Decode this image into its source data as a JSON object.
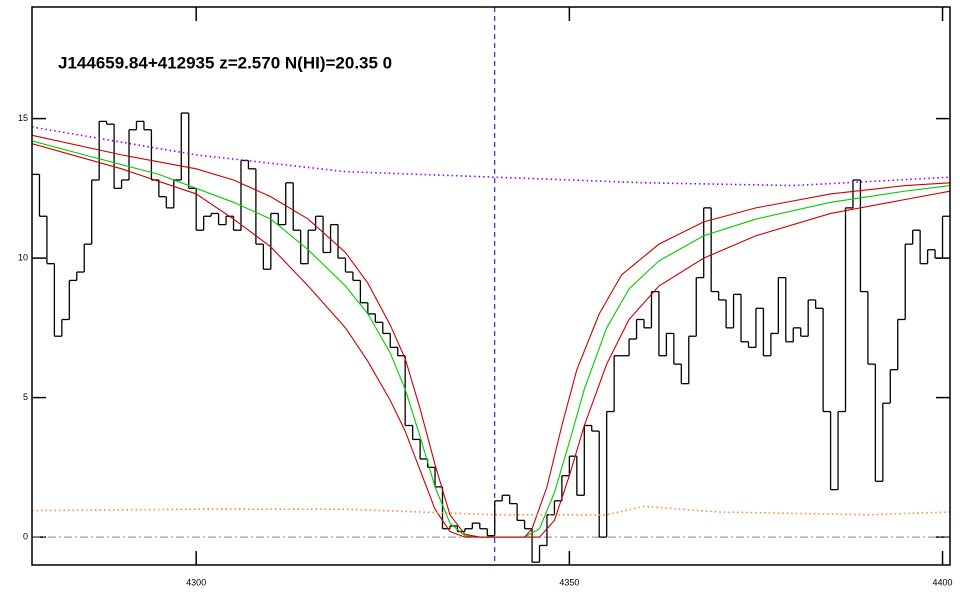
{
  "chart_data": {
    "type": "line",
    "title": "J144659.84+412935 z=2.570 N(HI)=20.35 0",
    "xlim": [
      4278,
      4401
    ],
    "ylim": [
      -1,
      19
    ],
    "xticks": [
      4300,
      4350,
      4400
    ],
    "yticks": [
      0,
      5,
      10,
      15
    ],
    "vline": 4340,
    "hline": 0,
    "x": [
      4278,
      4279,
      4280,
      4281,
      4282,
      4283,
      4284,
      4285,
      4286,
      4287,
      4288,
      4289,
      4290,
      4291,
      4292,
      4293,
      4294,
      4295,
      4296,
      4297,
      4298,
      4299,
      4300,
      4301,
      4302,
      4303,
      4304,
      4305,
      4306,
      4307,
      4308,
      4309,
      4310,
      4311,
      4312,
      4313,
      4314,
      4315,
      4316,
      4317,
      4318,
      4319,
      4320,
      4321,
      4322,
      4323,
      4324,
      4325,
      4326,
      4327,
      4328,
      4329,
      4330,
      4331,
      4332,
      4333,
      4334,
      4335,
      4336,
      4337,
      4338,
      4339,
      4340,
      4341,
      4342,
      4343,
      4344,
      4345,
      4346,
      4347,
      4348,
      4349,
      4350,
      4351,
      4352,
      4353,
      4354,
      4355,
      4356,
      4357,
      4358,
      4359,
      4360,
      4361,
      4362,
      4363,
      4364,
      4365,
      4366,
      4367,
      4368,
      4369,
      4370,
      4371,
      4372,
      4373,
      4374,
      4375,
      4376,
      4377,
      4378,
      4379,
      4380,
      4381,
      4382,
      4383,
      4384,
      4385,
      4386,
      4387,
      4388,
      4389,
      4390,
      4391,
      4392,
      4393,
      4394,
      4395,
      4396,
      4397,
      4398,
      4399,
      4400
    ],
    "series": [
      {
        "color": "#000000",
        "steps": true,
        "values": [
          13,
          11.5,
          9.8,
          7.2,
          7.8,
          9.2,
          9.5,
          10.5,
          12.8,
          14.9,
          14.8,
          12.5,
          12.8,
          14.6,
          14.9,
          14.6,
          12.8,
          12.2,
          11.8,
          12.8,
          15.2,
          12.5,
          11,
          11.5,
          11.6,
          11.2,
          11.5,
          11,
          13.5,
          13.2,
          10.5,
          9.6,
          11.6,
          11.2,
          12.7,
          11,
          9.8,
          11,
          11.5,
          10.2,
          11.2,
          10,
          9.5,
          9.2,
          8.4,
          8,
          7.7,
          7.3,
          6.8,
          6.5,
          4,
          3.5,
          2.8,
          2.5,
          1.8,
          0.3,
          0.4,
          0.2,
          0.3,
          0.5,
          0.3,
          0.05,
          1.3,
          1.5,
          1.2,
          0.6,
          0.3,
          -0.9,
          -0.3,
          0.8,
          1.3,
          2.2,
          2.9,
          1.5,
          4,
          3.8,
          0,
          4.5,
          6.5,
          6.5,
          7.1,
          7.8,
          7.5,
          8.8,
          6.5,
          7.3,
          6.2,
          5.5,
          7.2,
          9.3,
          11.8,
          8.8,
          8.5,
          7.5,
          8.7,
          7,
          6.8,
          8.2,
          6.5,
          7.3,
          9.3,
          7,
          7.5,
          7.2,
          8.5,
          8.2,
          4.5,
          1.7,
          4.5,
          11.8,
          12.8,
          8.8,
          6.2,
          2,
          4.8,
          6,
          7.8,
          10.5,
          11,
          9.8,
          10.3,
          10,
          11.5
        ]
      },
      {
        "color": "#00cc00",
        "x": [
          4278,
          4285,
          4295,
          4305,
          4310,
          4315,
          4320,
          4323,
          4326,
          4328,
          4330,
          4332,
          4334,
          4336,
          4338,
          4344,
          4346,
          4348,
          4350,
          4352,
          4355,
          4358,
          4362,
          4368,
          4375,
          4385,
          4395,
          4401
        ],
        "values": [
          14.2,
          13.7,
          13,
          12,
          11.4,
          10.3,
          9,
          8,
          6.6,
          5.3,
          3.6,
          1.8,
          0.5,
          0.05,
          0,
          0,
          0.3,
          1.6,
          3.4,
          5.3,
          7.5,
          8.9,
          9.9,
          10.8,
          11.4,
          12,
          12.4,
          12.6
        ]
      },
      {
        "color": "#cc0000",
        "x": [
          4278,
          4290,
          4300,
          4305,
          4310,
          4315,
          4320,
          4323,
          4326,
          4328,
          4330,
          4332,
          4334,
          4336,
          4338,
          4344,
          4345,
          4347,
          4349,
          4351,
          4354,
          4357,
          4362,
          4368,
          4375,
          4385,
          4395,
          4401
        ],
        "values": [
          14.4,
          13.7,
          13.2,
          12.8,
          12.2,
          11.4,
          10.2,
          9.1,
          7.6,
          6.4,
          4.6,
          2.6,
          0.8,
          0.1,
          0,
          0,
          0.3,
          1.8,
          4,
          6,
          8,
          9.4,
          10.5,
          11.3,
          11.8,
          12.3,
          12.6,
          12.7
        ]
      },
      {
        "color": "#cc0000",
        "x": [
          4278,
          4290,
          4300,
          4305,
          4310,
          4315,
          4320,
          4323,
          4326,
          4328,
          4330,
          4332,
          4334,
          4336,
          4346,
          4348,
          4350,
          4352,
          4355,
          4358,
          4362,
          4368,
          4375,
          4385,
          4395,
          4401
        ],
        "values": [
          14.1,
          13.2,
          12.3,
          11.4,
          10.4,
          9,
          7.5,
          6.3,
          4.9,
          3.8,
          2.4,
          1,
          0.2,
          0,
          0,
          0.6,
          2.2,
          4,
          6.2,
          7.8,
          9,
          10,
          10.8,
          11.6,
          12.1,
          12.4
        ]
      },
      {
        "color": "#9900ff",
        "dotted": true,
        "x": [
          4278,
          4300,
          4320,
          4340,
          4360,
          4380,
          4401
        ],
        "values": [
          14.7,
          13.7,
          13.1,
          12.9,
          12.7,
          12.6,
          12.9
        ]
      },
      {
        "color": "#ff8844",
        "dotted": true,
        "x": [
          4278,
          4300,
          4320,
          4340,
          4355,
          4360,
          4370,
          4390,
          4401
        ],
        "values": [
          0.95,
          1,
          1,
          0.8,
          0.8,
          1.1,
          0.9,
          0.8,
          0.9
        ]
      }
    ]
  }
}
